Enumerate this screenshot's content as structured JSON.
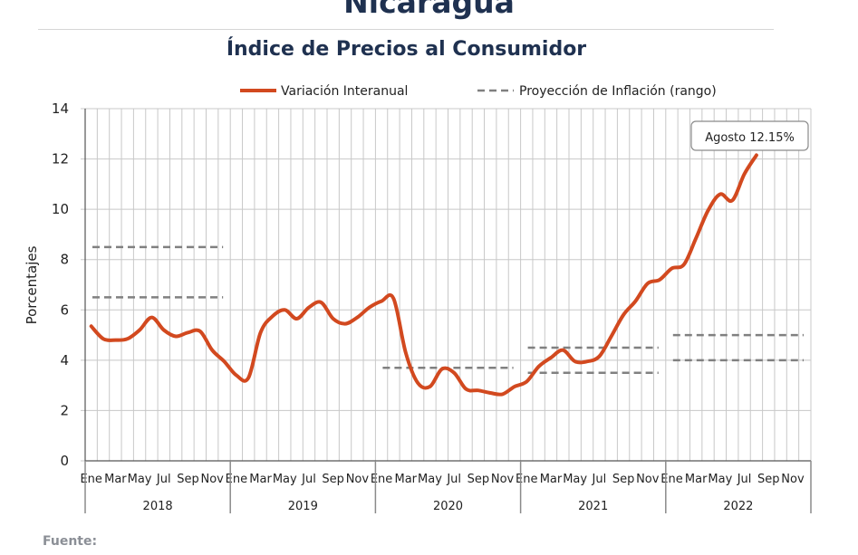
{
  "header": {
    "title": "Nicaragua",
    "subtitle": "Índice de Precios al Consumidor"
  },
  "footer": {
    "source_label": "Fuente:"
  },
  "colors": {
    "series": "#d2491f",
    "projection": "#808080",
    "grid": "#c8c8c8",
    "title": "#1f3150"
  },
  "chart_data": {
    "type": "line",
    "ylabel": "Porcentajes",
    "ylim": [
      0,
      14
    ],
    "yticks": [
      0,
      2,
      4,
      6,
      8,
      10,
      12,
      14
    ],
    "grid": true,
    "legend_position": "top",
    "month_ticks": [
      "Ene",
      "Mar",
      "May",
      "Jul",
      "Sep",
      "Nov"
    ],
    "years": [
      "2018",
      "2019",
      "2020",
      "2021",
      "2022"
    ],
    "series": [
      {
        "name": "Variación Interanual",
        "start": "2018-01",
        "values": [
          5.35,
          4.85,
          4.8,
          4.85,
          5.2,
          5.7,
          5.2,
          4.95,
          5.1,
          5.15,
          4.4,
          3.95,
          3.4,
          3.3,
          5.1,
          5.75,
          6.0,
          5.65,
          6.1,
          6.3,
          5.65,
          5.45,
          5.7,
          6.1,
          6.35,
          6.45,
          4.3,
          3.1,
          2.95,
          3.65,
          3.5,
          2.85,
          2.8,
          2.7,
          2.65,
          2.95,
          3.15,
          3.75,
          4.1,
          4.4,
          3.95,
          3.95,
          4.15,
          4.95,
          5.8,
          6.35,
          7.05,
          7.2,
          7.65,
          7.8,
          8.85,
          9.95,
          10.6,
          10.35,
          11.4,
          12.15
        ]
      },
      {
        "name": "Proyección de Inflación (rango)",
        "ranges": [
          {
            "year": "2018",
            "low": 6.5,
            "high": 8.5
          },
          {
            "year": "2020",
            "low": 3.7,
            "high": 3.7
          },
          {
            "year": "2021",
            "low": 3.5,
            "high": 4.5
          },
          {
            "year": "2022",
            "low": 4.0,
            "high": 5.0
          }
        ]
      }
    ],
    "annotation": "Agosto 12.15%"
  }
}
